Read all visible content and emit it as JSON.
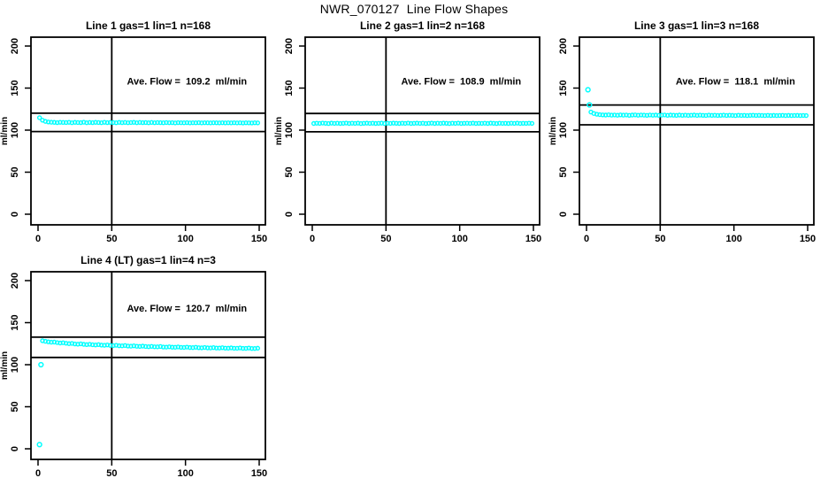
{
  "figure_title": "NWR_070127  Line Flow Shapes",
  "colors": {
    "data_point": "#00ffff",
    "axis": "#000000",
    "background": "#ffffff"
  },
  "chart_data": [
    {
      "type": "scatter",
      "title": "Line 1 gas=1 lin=1 n=168",
      "annotation": "Ave. Flow =  109.2  ml/min",
      "ave_flow_ml_min": 109.2,
      "n": 168,
      "ylabel": "ml/min",
      "x_ticks": [
        0,
        50,
        100,
        150
      ],
      "y_ticks": [
        0,
        50,
        100,
        150,
        200
      ],
      "xlim": [
        -6,
        156
      ],
      "ylim": [
        -12,
        223
      ],
      "vline_x": 50,
      "ref_lines_y": [
        98.3,
        120.1
      ],
      "ann_pos": {
        "x": 101,
        "y": 154
      },
      "series": {
        "x_start": 1,
        "x_step": 2,
        "y": [
          114.8,
          111.8,
          110.4,
          109.7,
          109.4,
          109.2,
          108.9,
          109.3,
          109.1,
          109.0,
          109.3,
          108.8,
          109.2,
          109.0,
          108.9,
          109.4,
          108.8,
          109.1,
          108.9,
          109.2,
          109.0,
          108.8,
          109.3,
          108.9,
          109.1,
          109.0,
          108.7,
          109.2,
          108.9,
          109.1,
          108.8,
          109.0,
          109.2,
          108.8,
          109.1,
          108.9,
          109.0,
          108.7,
          109.1,
          108.8,
          109.0,
          108.9,
          108.7,
          109.0,
          108.8,
          108.9,
          108.6,
          108.9,
          108.8,
          108.7,
          108.9,
          108.6,
          108.8,
          108.7,
          108.9,
          108.6,
          108.8,
          108.7,
          108.6,
          108.8,
          108.7,
          108.6,
          108.8,
          108.6,
          108.7,
          108.6,
          108.8,
          108.6,
          108.7,
          108.5,
          108.7,
          108.6,
          108.5,
          108.7,
          108.6
        ]
      },
      "extra_points": []
    },
    {
      "type": "scatter",
      "title": "Line 2 gas=1 lin=2 n=168",
      "annotation": "Ave. Flow =  108.9  ml/min",
      "ave_flow_ml_min": 108.9,
      "n": 168,
      "ylabel": "ml/min",
      "x_ticks": [
        0,
        50,
        100,
        150
      ],
      "y_ticks": [
        0,
        50,
        100,
        150,
        200
      ],
      "xlim": [
        -6,
        156
      ],
      "ylim": [
        -12,
        223
      ],
      "vline_x": 50,
      "ref_lines_y": [
        98.0,
        119.8
      ],
      "ann_pos": {
        "x": 101,
        "y": 154
      },
      "series": {
        "x_start": 1,
        "x_step": 2,
        "y": [
          107.9,
          108.2,
          108.0,
          108.4,
          108.1,
          107.8,
          108.3,
          108.0,
          108.2,
          107.9,
          108.1,
          108.4,
          107.9,
          108.2,
          108.0,
          108.3,
          107.8,
          108.1,
          108.3,
          108.0,
          108.2,
          107.9,
          108.1,
          108.3,
          107.8,
          108.2,
          108.0,
          108.3,
          108.1,
          107.9,
          108.2,
          108.0,
          108.4,
          107.9,
          108.1,
          108.3,
          108.0,
          108.2,
          107.8,
          108.1,
          108.3,
          107.9,
          108.2,
          108.0,
          108.3,
          108.1,
          107.8,
          108.2,
          108.0,
          108.3,
          107.9,
          108.1,
          108.2,
          108.0,
          108.3,
          107.9,
          108.1,
          108.0,
          108.2,
          107.9,
          108.3,
          108.1,
          107.8,
          108.2,
          108.0,
          108.1,
          107.9,
          108.2,
          108.0,
          108.3,
          107.9,
          108.1,
          108.0,
          108.2,
          108.0
        ]
      },
      "extra_points": []
    },
    {
      "type": "scatter",
      "title": "Line 3 gas=1 lin=3 n=168",
      "annotation": "Ave. Flow =  118.1  ml/min",
      "ave_flow_ml_min": 118.1,
      "n": 168,
      "ylabel": "ml/min",
      "x_ticks": [
        0,
        50,
        100,
        150
      ],
      "y_ticks": [
        0,
        50,
        100,
        150,
        200
      ],
      "xlim": [
        -6,
        156
      ],
      "ylim": [
        -12,
        223
      ],
      "vline_x": 50,
      "ref_lines_y": [
        106.3,
        129.9
      ],
      "ann_pos": {
        "x": 101,
        "y": 154
      },
      "series": {
        "x_start": 3,
        "x_step": 2,
        "y": [
          121.5,
          119.8,
          118.9,
          118.4,
          118.1,
          117.9,
          118.2,
          117.8,
          118.0,
          117.7,
          118.1,
          117.8,
          118.0,
          117.6,
          117.9,
          118.1,
          117.7,
          118.0,
          117.8,
          117.6,
          118.0,
          117.7,
          117.9,
          117.6,
          117.8,
          118.0,
          117.6,
          117.9,
          117.7,
          117.5,
          117.9,
          117.6,
          117.8,
          117.5,
          117.7,
          117.9,
          117.5,
          117.8,
          117.6,
          117.4,
          117.8,
          117.5,
          117.7,
          117.4,
          117.6,
          117.8,
          117.4,
          117.7,
          117.5,
          117.3,
          117.7,
          117.4,
          117.6,
          117.3,
          117.5,
          117.7,
          117.4,
          117.6,
          117.4,
          117.3,
          117.6,
          117.3,
          117.5,
          117.3,
          117.4,
          117.6,
          117.3,
          117.5,
          117.3,
          117.4,
          117.5,
          117.3,
          117.4,
          117.3
        ]
      },
      "extra_points": [
        [
          1,
          148
        ],
        [
          2,
          130
        ]
      ]
    },
    {
      "type": "scatter",
      "title": "Line 4 (LT) gas=1 lin=4 n=3",
      "annotation": "Ave. Flow =  120.7  ml/min",
      "ave_flow_ml_min": 120.7,
      "n": 3,
      "ylabel": "ml/min",
      "x_ticks": [
        0,
        50,
        100,
        150
      ],
      "y_ticks": [
        0,
        50,
        100,
        150,
        200
      ],
      "xlim": [
        -6,
        156
      ],
      "ylim": [
        -12,
        223
      ],
      "vline_x": 50,
      "ref_lines_y": [
        108.6,
        132.8
      ],
      "ann_pos": {
        "x": 101,
        "y": 163
      },
      "series": {
        "x_start": 3,
        "x_step": 2,
        "y": [
          128.5,
          127.8,
          127.2,
          126.8,
          126.9,
          126.3,
          125.8,
          126.1,
          125.5,
          125.0,
          125.3,
          124.7,
          124.4,
          124.8,
          124.2,
          123.9,
          124.3,
          123.7,
          123.5,
          123.9,
          123.3,
          123.1,
          123.5,
          122.9,
          122.7,
          123.1,
          122.5,
          122.4,
          122.8,
          122.2,
          122.0,
          122.4,
          121.9,
          121.7,
          122.1,
          121.6,
          121.4,
          121.8,
          121.3,
          121.2,
          121.6,
          121.0,
          120.9,
          121.3,
          120.8,
          120.7,
          121.1,
          120.6,
          120.5,
          120.9,
          120.4,
          120.3,
          120.7,
          120.2,
          120.1,
          120.5,
          120.0,
          119.9,
          120.3,
          119.8,
          119.8,
          120.2,
          119.7,
          119.6,
          120.0,
          119.5,
          119.5,
          119.9,
          119.4,
          119.4,
          119.8,
          119.3,
          119.3,
          119.6
        ]
      },
      "extra_points": [
        [
          1,
          5
        ],
        [
          2,
          100
        ]
      ]
    }
  ]
}
